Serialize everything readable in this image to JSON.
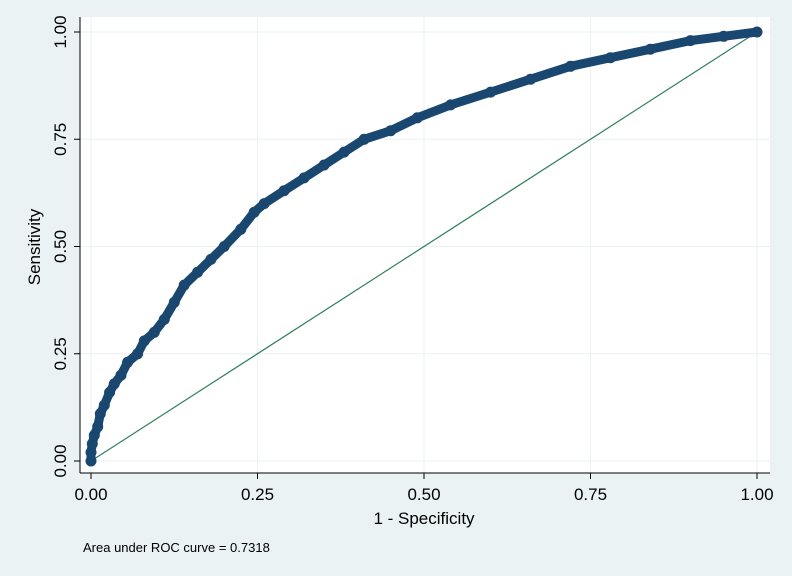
{
  "chart_data": {
    "type": "line",
    "title": "",
    "xlabel": "1 - Specificity",
    "ylabel": "Sensitivity",
    "xlim": [
      0,
      1
    ],
    "ylim": [
      0,
      1
    ],
    "x_ticks": [
      "0.00",
      "0.25",
      "0.50",
      "0.75",
      "1.00"
    ],
    "y_ticks": [
      "0.00",
      "0.25",
      "0.50",
      "0.75",
      "1.00"
    ],
    "x_tick_values": [
      0,
      0.25,
      0.5,
      0.75,
      1.0
    ],
    "y_tick_values": [
      0,
      0.25,
      0.5,
      0.75,
      1.0
    ],
    "grid": true,
    "series": [
      {
        "name": "",
        "kind": "roc-curve",
        "points": [
          [
            0.0,
            0.0
          ],
          [
            0.0,
            0.02
          ],
          [
            0.002,
            0.04
          ],
          [
            0.005,
            0.06
          ],
          [
            0.01,
            0.08
          ],
          [
            0.014,
            0.11
          ],
          [
            0.02,
            0.13
          ],
          [
            0.028,
            0.16
          ],
          [
            0.035,
            0.18
          ],
          [
            0.045,
            0.2
          ],
          [
            0.055,
            0.23
          ],
          [
            0.07,
            0.25
          ],
          [
            0.08,
            0.28
          ],
          [
            0.095,
            0.3
          ],
          [
            0.11,
            0.33
          ],
          [
            0.125,
            0.37
          ],
          [
            0.14,
            0.41
          ],
          [
            0.16,
            0.44
          ],
          [
            0.18,
            0.47
          ],
          [
            0.2,
            0.5
          ],
          [
            0.225,
            0.54
          ],
          [
            0.245,
            0.58
          ],
          [
            0.26,
            0.6
          ],
          [
            0.29,
            0.63
          ],
          [
            0.32,
            0.66
          ],
          [
            0.35,
            0.69
          ],
          [
            0.38,
            0.72
          ],
          [
            0.41,
            0.75
          ],
          [
            0.45,
            0.77
          ],
          [
            0.49,
            0.8
          ],
          [
            0.54,
            0.83
          ],
          [
            0.6,
            0.86
          ],
          [
            0.66,
            0.89
          ],
          [
            0.72,
            0.92
          ],
          [
            0.78,
            0.94
          ],
          [
            0.84,
            0.96
          ],
          [
            0.9,
            0.98
          ],
          [
            0.95,
            0.99
          ],
          [
            1.0,
            1.0
          ]
        ],
        "color": "#1a476f"
      },
      {
        "name": "",
        "kind": "reference-line",
        "points": [
          [
            0,
            0
          ],
          [
            1,
            1
          ]
        ],
        "color": "#2e7d5b"
      }
    ],
    "annotations": [
      "Area under ROC curve = 0.7318"
    ],
    "auc": 0.7318
  },
  "colors": {
    "background": "#eaf2f3",
    "plot_background": "#ffffff",
    "grid": "#eaf2f3",
    "curve": "#1a476f",
    "reference": "#2e7d5b"
  }
}
